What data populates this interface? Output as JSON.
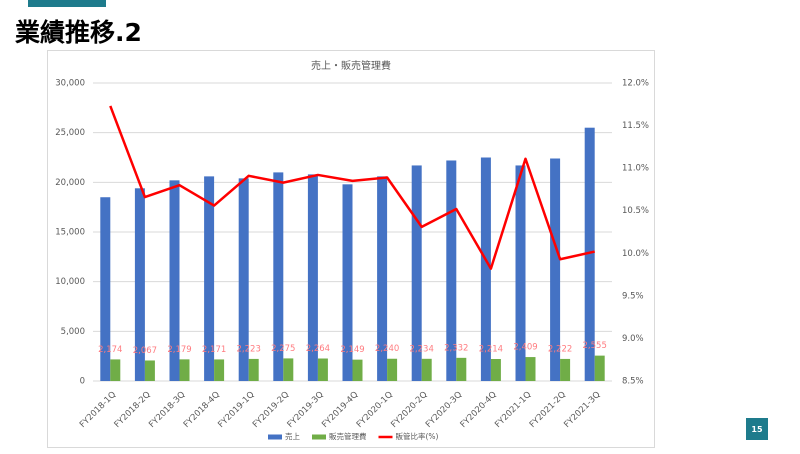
{
  "slide": {
    "title": "業績推移.2",
    "page_number": "15"
  },
  "chart_data": {
    "type": "bar",
    "title": "売上・販売管理費",
    "categories": [
      "FY2018-1Q",
      "FY2018-2Q",
      "FY2018-3Q",
      "FY2018-4Q",
      "FY2019-1Q",
      "FY2019-2Q",
      "FY2019-3Q",
      "FY2019-4Q",
      "FY2020-1Q",
      "FY2020-2Q",
      "FY2020-3Q",
      "FY2020-4Q",
      "FY2021-1Q",
      "FY2021-2Q",
      "FY2021-3Q"
    ],
    "series": [
      {
        "name": "売上",
        "color": "#4472c4",
        "type": "bar",
        "values": [
          18500,
          19400,
          20200,
          20600,
          20400,
          21000,
          20800,
          19800,
          20600,
          21700,
          22200,
          22500,
          21700,
          22400,
          25500
        ]
      },
      {
        "name": "販売管理費",
        "color": "#70ad47",
        "type": "bar",
        "values": [
          2174,
          2067,
          2179,
          2171,
          2223,
          2275,
          2264,
          2149,
          2240,
          2234,
          2332,
          2214,
          2409,
          2222,
          2555
        ],
        "value_labels": [
          "2,174",
          "2,067",
          "2,179",
          "2,171",
          "2,223",
          "2,275",
          "2,264",
          "2,149",
          "2,240",
          "2,234",
          "2,332",
          "2,214",
          "2,409",
          "2,222",
          "2,555"
        ],
        "label_color": "#ff7c80"
      },
      {
        "name": "販管比率(%)",
        "color": "#ff0000",
        "type": "line",
        "axis": "y2",
        "values": [
          11.73,
          10.66,
          10.8,
          10.56,
          10.91,
          10.83,
          10.92,
          10.85,
          10.89,
          10.31,
          10.52,
          9.82,
          11.11,
          9.93,
          10.02
        ]
      }
    ],
    "ylim": [
      0,
      30000
    ],
    "yticks": [
      0,
      {
        "value": 5000,
        "label": "5,000"
      },
      {
        "value": 10000,
        "label": "10,000"
      },
      {
        "value": 15000,
        "label": "15,000"
      },
      {
        "value": 20000,
        "label": "20,000"
      },
      {
        "value": 25000,
        "label": "25,000"
      },
      {
        "value": 30000,
        "label": "30,000"
      }
    ],
    "y2lim": [
      8.5,
      12.0
    ],
    "y2ticks": [
      {
        "value": 8.5,
        "label": "8.5%"
      },
      {
        "value": 9.0,
        "label": "9.0%"
      },
      {
        "value": 9.5,
        "label": "9.5%"
      },
      {
        "value": 10.0,
        "label": "10.0%"
      },
      {
        "value": 10.5,
        "label": "10.5%"
      },
      {
        "value": 11.0,
        "label": "11.0%"
      },
      {
        "value": 11.5,
        "label": "11.5%"
      },
      {
        "value": 12.0,
        "label": "12.0%"
      }
    ],
    "grid": true,
    "legend": "bottom"
  }
}
